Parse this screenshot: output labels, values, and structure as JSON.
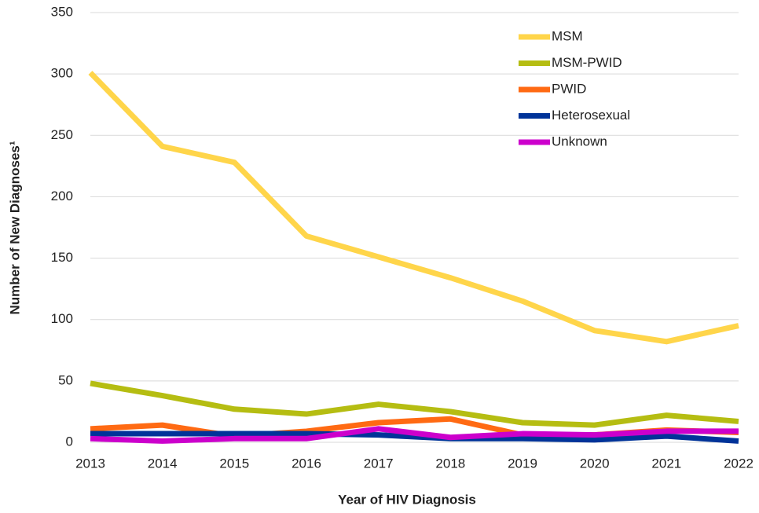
{
  "chart_data": {
    "type": "line",
    "x_label": "Year of HIV Diagnosis",
    "y_label": "Number of New Diagnoses¹",
    "x": [
      2013,
      2014,
      2015,
      2016,
      2017,
      2018,
      2019,
      2020,
      2021,
      2022
    ],
    "series": [
      {
        "name": "MSM",
        "color": "#ffd54a",
        "values": [
          301,
          241,
          228,
          168,
          151,
          134,
          115,
          91,
          82,
          95
        ]
      },
      {
        "name": "MSM-PWID",
        "color": "#b5bd12",
        "values": [
          48,
          38,
          27,
          23,
          31,
          25,
          16,
          14,
          22,
          17
        ]
      },
      {
        "name": "PWID",
        "color": "#ff6a13",
        "values": [
          11,
          14,
          5,
          9,
          16,
          19,
          6,
          6,
          10,
          8
        ]
      },
      {
        "name": "Heterosexual",
        "color": "#003399",
        "values": [
          7,
          7,
          7,
          7,
          6,
          3,
          3,
          2,
          5,
          1
        ]
      },
      {
        "name": "Unknown",
        "color": "#cc00cc",
        "values": [
          3,
          1,
          3,
          3,
          11,
          4,
          7,
          6,
          9,
          9
        ]
      }
    ],
    "xlim": [
      2013,
      2022
    ],
    "xticks": [
      2013,
      2014,
      2015,
      2016,
      2017,
      2018,
      2019,
      2020,
      2021,
      2022
    ],
    "ylim": [
      0,
      350
    ],
    "yticks": [
      0,
      50,
      100,
      150,
      200,
      250,
      300,
      350
    ],
    "grid": true,
    "legend": "upper-right"
  }
}
